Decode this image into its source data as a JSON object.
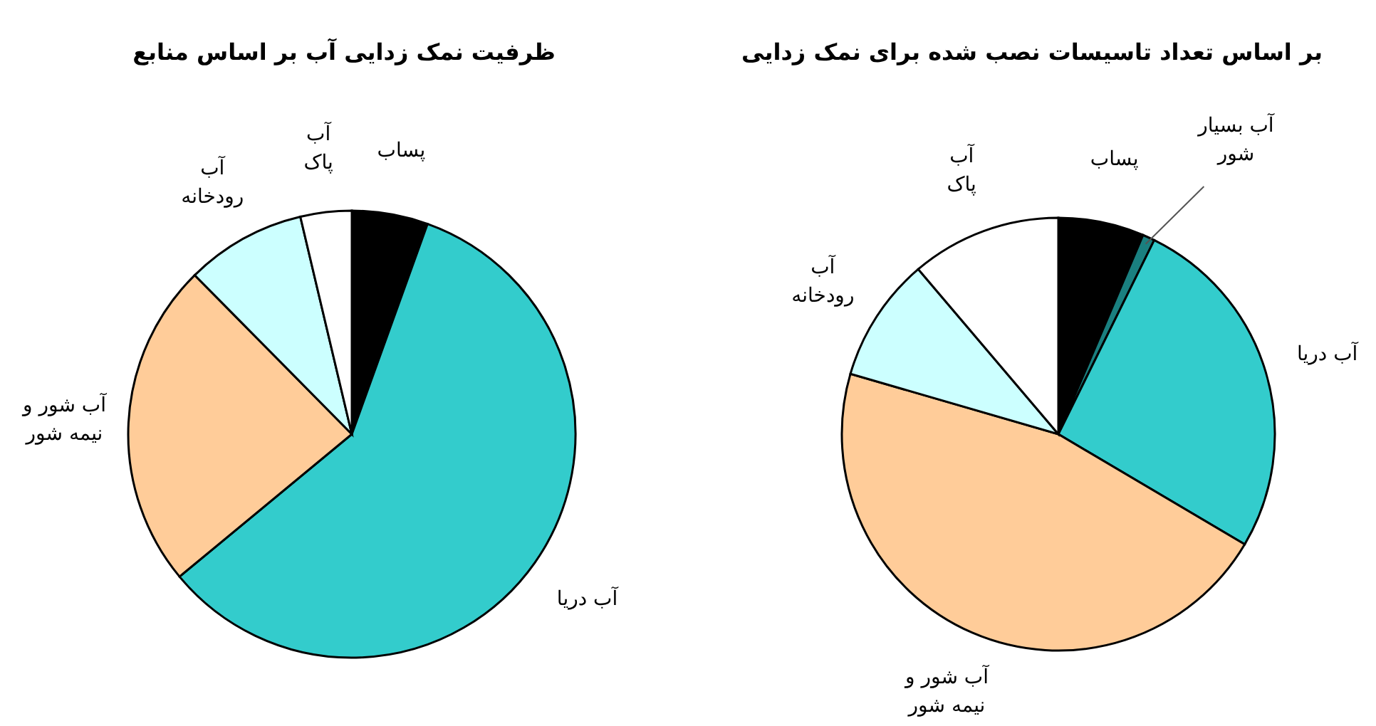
{
  "chart_data": [
    {
      "type": "pie",
      "title": "ظرفیت نمک زدایی آب بر اساس منابع",
      "categories": [
        "پساب",
        "آب دریا",
        "آب شور و\nنیمه شور",
        "آب\nرودخانه",
        "آب\nپاک"
      ],
      "values": [
        5.5,
        58.5,
        23.6,
        8.7,
        3.7
      ],
      "colors": [
        "#000000",
        "#33cccc",
        "#ffcc99",
        "#ccffff",
        "#ffffff"
      ],
      "legend": false
    },
    {
      "type": "pie",
      "title": "بر اساس تعداد تاسیسات نصب شده برای نمک زدایی",
      "categories": [
        "پساب",
        "آب بسیار\nشور",
        "آب دریا",
        "آب شور و\nنیمه شور",
        "آب\nرودخانه",
        "آب\nپاک"
      ],
      "values": [
        6.4,
        0.9,
        26.2,
        46,
        9.3,
        11.2
      ],
      "colors": [
        "#000000",
        "#1a8080",
        "#33cccc",
        "#ffcc99",
        "#ccffff",
        "#ffffff"
      ],
      "legend": false
    }
  ]
}
